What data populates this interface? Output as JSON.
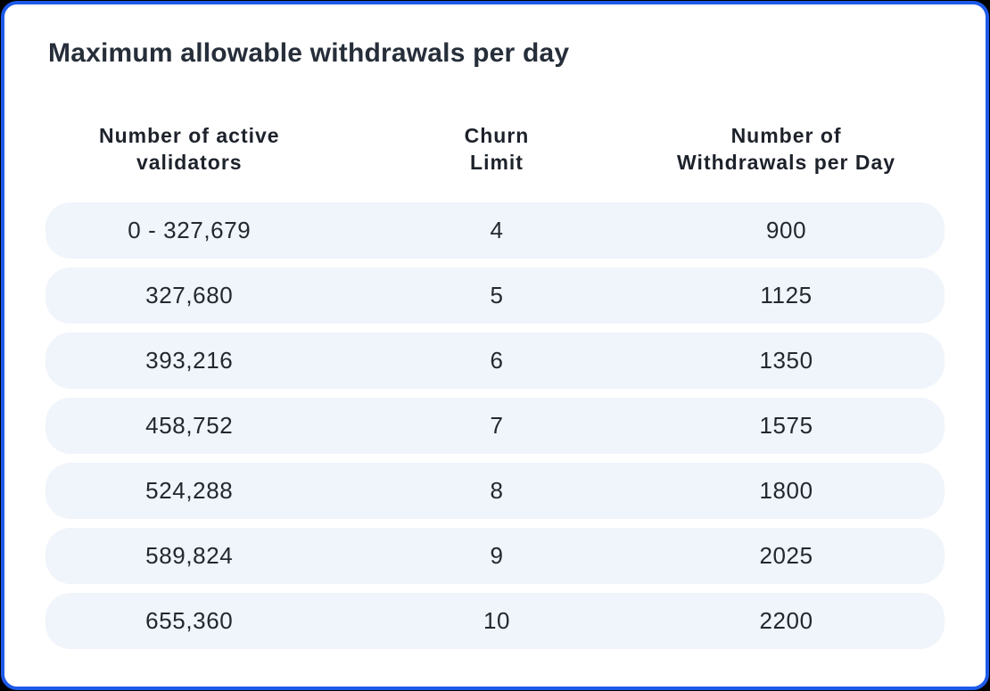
{
  "colors": {
    "page_background": "#000000",
    "card_border": "#1d5ae9",
    "card_background": "#ffffff",
    "row_background": "#f0f4fb",
    "text_dark": "#262e3a"
  },
  "title": "Maximum allowable withdrawals per day",
  "table": {
    "headers": [
      {
        "line1": "Number of active",
        "line2": "validators"
      },
      {
        "line1": "Churn",
        "line2": "Limit"
      },
      {
        "line1": "Number of",
        "line2": "Withdrawals per Day"
      }
    ],
    "rows": [
      {
        "validators": "0 - 327,679",
        "churn": "4",
        "withdrawals": "900"
      },
      {
        "validators": "327,680",
        "churn": "5",
        "withdrawals": "1125"
      },
      {
        "validators": "393,216",
        "churn": "6",
        "withdrawals": "1350"
      },
      {
        "validators": "458,752",
        "churn": "7",
        "withdrawals": "1575"
      },
      {
        "validators": "524,288",
        "churn": "8",
        "withdrawals": "1800"
      },
      {
        "validators": "589,824",
        "churn": "9",
        "withdrawals": "2025"
      },
      {
        "validators": "655,360",
        "churn": "10",
        "withdrawals": "2200"
      }
    ]
  },
  "chart_data": {
    "type": "table",
    "title": "Maximum allowable withdrawals per day",
    "columns": [
      "Number of active validators",
      "Churn Limit",
      "Number of Withdrawals per Day"
    ],
    "rows": [
      [
        "0 - 327,679",
        4,
        900
      ],
      [
        "327,680",
        5,
        1125
      ],
      [
        "393,216",
        6,
        1350
      ],
      [
        "458,752",
        7,
        1575
      ],
      [
        "524,288",
        8,
        1800
      ],
      [
        "589,824",
        9,
        2025
      ],
      [
        "655,360",
        10,
        2200
      ]
    ]
  }
}
